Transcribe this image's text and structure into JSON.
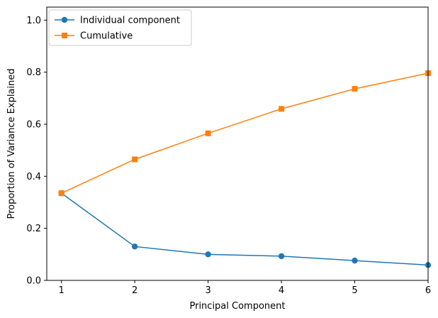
{
  "chart_data": {
    "type": "line",
    "xlabel": "Principal Component",
    "ylabel": "Proportion of Variance Explained",
    "x": [
      1,
      2,
      3,
      4,
      5,
      6
    ],
    "xlim": [
      0.8,
      6
    ],
    "ylim": [
      0,
      1.05
    ],
    "xticks": [
      "1",
      "2",
      "3",
      "4",
      "5",
      "6"
    ],
    "yticks": [
      "0.0",
      "0.2",
      "0.4",
      "0.6",
      "0.8",
      "1.0"
    ],
    "grid": false,
    "legend_position": "top-left",
    "series": [
      {
        "name": "Individual component",
        "values": [
          0.335,
          0.13,
          0.1,
          0.093,
          0.076,
          0.059
        ],
        "color": "#1f77b4",
        "marker": "circle"
      },
      {
        "name": "Cumulative",
        "values": [
          0.335,
          0.465,
          0.565,
          0.659,
          0.736,
          0.796
        ],
        "color": "#ff7f0e",
        "marker": "square"
      }
    ]
  }
}
